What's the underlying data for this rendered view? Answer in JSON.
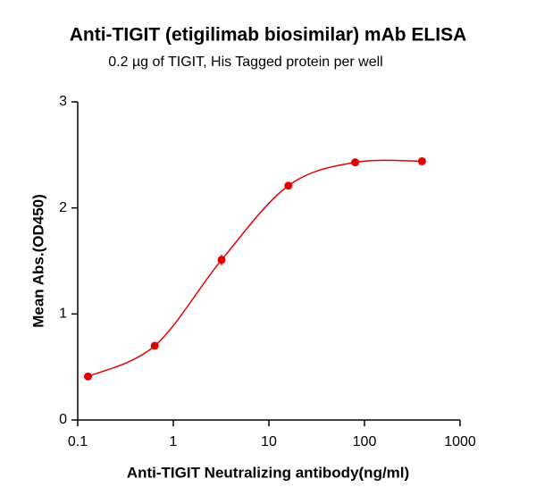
{
  "chart_data": {
    "type": "line",
    "title": "Anti-TIGIT (etigilimab biosimilar) mAb ELISA",
    "subtitle": "0.2 µg of TIGIT, His Tagged protein per well",
    "x_label": "Anti-TIGIT Neutralizing antibody(ng/ml)",
    "y_label": "Mean Abs.(OD450)",
    "x_scale": "log",
    "xlim": [
      0.1,
      1000
    ],
    "xticks": [
      0.1,
      1,
      10,
      100,
      1000
    ],
    "ylim": [
      0,
      3
    ],
    "yticks": [
      0,
      1,
      2,
      3
    ],
    "series": [
      {
        "color": "#e00000",
        "x": [
          0.128,
          0.64,
          3.2,
          16,
          80,
          400
        ],
        "values": [
          0.41,
          0.7,
          1.51,
          2.21,
          2.43,
          2.44
        ],
        "errors": [
          0.02,
          0.02,
          0.05,
          0.02,
          0.02,
          0.01
        ]
      }
    ]
  }
}
